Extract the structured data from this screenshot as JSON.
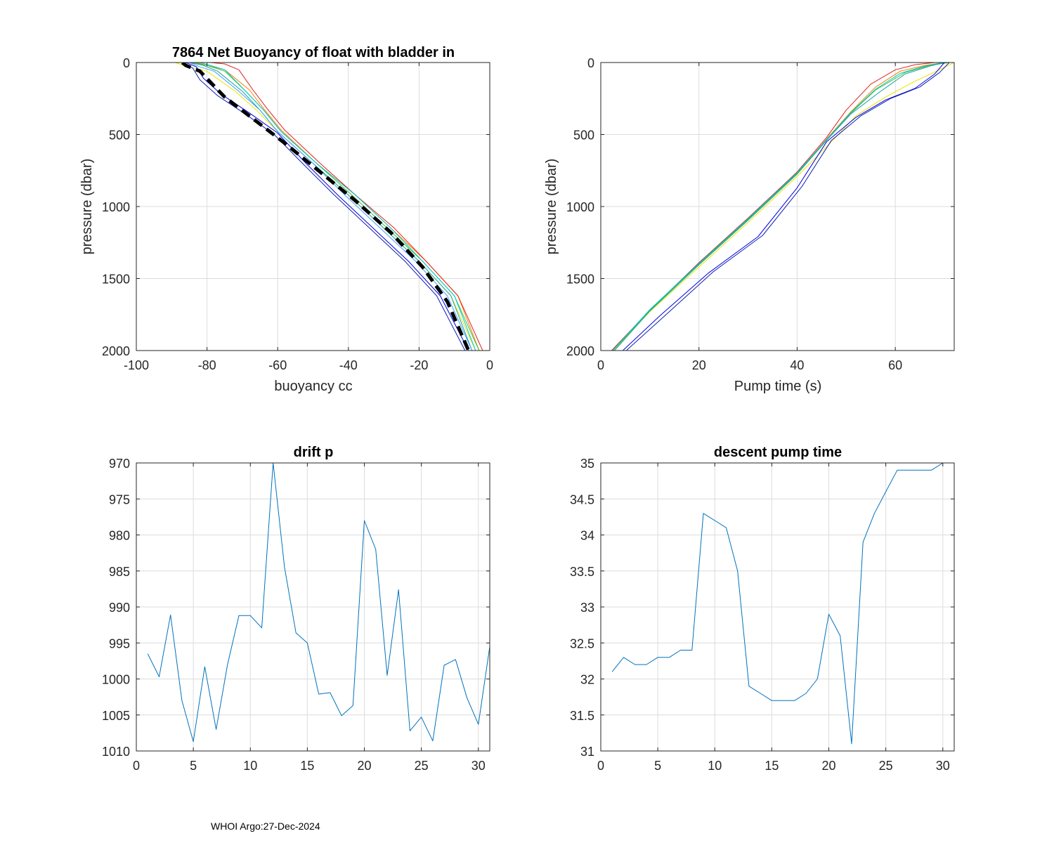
{
  "footer": "WHOI Argo:27-Dec-2024",
  "panels": {
    "buoyancy": {
      "title": "7864 Net Buoyancy of float with bladder in",
      "xlabel": "buoyancy cc",
      "ylabel": "pressure (dbar)"
    },
    "pump": {
      "title": "",
      "xlabel": "Pump time (s)",
      "ylabel": "pressure (dbar)"
    },
    "drift": {
      "title": "drift p",
      "xlabel": "",
      "ylabel": ""
    },
    "descent": {
      "title": "descent pump time",
      "xlabel": "",
      "ylabel": ""
    }
  },
  "chart_data": [
    {
      "id": "buoyancy",
      "type": "line",
      "title": "7864 Net Buoyancy of float with bladder in",
      "xlabel": "buoyancy cc",
      "ylabel": "pressure (dbar)",
      "xlim": [
        -100,
        0
      ],
      "ylim": [
        0,
        2000
      ],
      "y_reversed": true,
      "xticks": [
        -100,
        -80,
        -60,
        -40,
        -20,
        0
      ],
      "yticks": [
        0,
        500,
        1000,
        1500,
        2000
      ],
      "grid": true,
      "series": [
        {
          "name": "profile-yellow",
          "color": "#e6e600",
          "x": [
            -89,
            -86,
            -80,
            -72,
            -66,
            -60,
            -50,
            -40,
            -30,
            -20,
            -11,
            -4
          ],
          "y": [
            0,
            25,
            60,
            200,
            330,
            480,
            700,
            920,
            1150,
            1380,
            1620,
            2000
          ]
        },
        {
          "name": "profile-orange",
          "color": "#ff8000",
          "x": [
            -83,
            -80,
            -75,
            -68,
            -64,
            -59,
            -49,
            -38,
            -28,
            -18,
            -9,
            -3
          ],
          "y": [
            0,
            20,
            50,
            190,
            320,
            470,
            700,
            920,
            1150,
            1380,
            1620,
            2000
          ]
        },
        {
          "name": "profile-red",
          "color": "#e02020",
          "x": [
            -79,
            -75,
            -71,
            -67,
            -63,
            -58,
            -48,
            -38,
            -27,
            -18,
            -9,
            -2
          ],
          "y": [
            0,
            10,
            50,
            190,
            320,
            470,
            700,
            920,
            1150,
            1380,
            1620,
            2000
          ]
        },
        {
          "name": "profile-green",
          "color": "#40c040",
          "x": [
            -84,
            -80,
            -75,
            -69,
            -64,
            -59,
            -49,
            -39,
            -29,
            -19,
            -10,
            -3
          ],
          "y": [
            0,
            20,
            60,
            200,
            330,
            480,
            700,
            920,
            1150,
            1380,
            1620,
            2000
          ]
        },
        {
          "name": "profile-cyan",
          "color": "#00c8c8",
          "x": [
            -82,
            -79,
            -75,
            -69,
            -64,
            -59,
            -49,
            -38,
            -28,
            -19,
            -10,
            -4
          ],
          "y": [
            0,
            20,
            50,
            200,
            330,
            480,
            700,
            920,
            1150,
            1380,
            1620,
            2000
          ]
        },
        {
          "name": "profile-teal",
          "color": "#20a0a0",
          "x": [
            -85,
            -81,
            -77,
            -70,
            -65,
            -60,
            -50,
            -40,
            -30,
            -20,
            -11,
            -5
          ],
          "y": [
            0,
            20,
            60,
            200,
            330,
            480,
            700,
            920,
            1150,
            1380,
            1620,
            2000
          ]
        },
        {
          "name": "profile-lightblue",
          "color": "#40a0ff",
          "x": [
            -85,
            -82,
            -78,
            -71,
            -65,
            -60,
            -50,
            -41,
            -31,
            -21,
            -12,
            -5
          ],
          "y": [
            0,
            30,
            60,
            200,
            330,
            480,
            700,
            920,
            1150,
            1380,
            1620,
            2000
          ]
        },
        {
          "name": "profile-blue",
          "color": "#0000e0",
          "x": [
            -86,
            -83,
            -81,
            -76,
            -68,
            -60,
            -52,
            -43,
            -33,
            -23,
            -14,
            -6
          ],
          "y": [
            0,
            30,
            110,
            220,
            350,
            490,
            700,
            920,
            1150,
            1380,
            1620,
            2000
          ]
        },
        {
          "name": "profile-navy",
          "color": "#1020b0",
          "x": [
            -87,
            -84,
            -82,
            -77,
            -69,
            -61,
            -53,
            -44,
            -34,
            -24,
            -15,
            -7
          ],
          "y": [
            0,
            40,
            120,
            230,
            360,
            500,
            700,
            920,
            1150,
            1380,
            1620,
            2000
          ]
        },
        {
          "name": "model-fit",
          "color": "#000000",
          "style": "dashed",
          "x": [
            -87,
            -86,
            -82,
            -75,
            -67,
            -58,
            -48,
            -38,
            -28,
            -19,
            -12,
            -6
          ],
          "y": [
            0,
            20,
            60,
            240,
            390,
            560,
            760,
            960,
            1180,
            1420,
            1660,
            2000
          ]
        }
      ]
    },
    {
      "id": "pump",
      "type": "line",
      "title": "",
      "xlabel": "Pump time (s)",
      "ylabel": "pressure (dbar)",
      "xlim": [
        0,
        72
      ],
      "ylim": [
        0,
        2000
      ],
      "y_reversed": true,
      "xticks": [
        0,
        20,
        40,
        60
      ],
      "yticks": [
        0,
        500,
        1000,
        1500,
        2000
      ],
      "grid": true,
      "series": [
        {
          "name": "pump-yellow",
          "color": "#e6e600",
          "x": [
            2.5,
            10,
            20,
            30,
            40,
            47,
            52,
            58,
            64,
            69,
            72
          ],
          "y": [
            2000,
            1730,
            1420,
            1110,
            790,
            550,
            370,
            240,
            130,
            50,
            0
          ]
        },
        {
          "name": "pump-orange",
          "color": "#ff8000",
          "x": [
            2.5,
            10,
            20,
            30,
            40,
            46,
            51,
            56,
            61,
            66,
            70
          ],
          "y": [
            2000,
            1720,
            1400,
            1090,
            770,
            530,
            340,
            170,
            60,
            20,
            0
          ]
        },
        {
          "name": "pump-red",
          "color": "#e02020",
          "x": [
            2.2,
            10,
            20,
            30,
            40,
            46,
            50,
            55,
            60,
            64,
            68
          ],
          "y": [
            2000,
            1720,
            1390,
            1080,
            760,
            520,
            330,
            150,
            50,
            15,
            0
          ]
        },
        {
          "name": "pump-green",
          "color": "#40c040",
          "x": [
            2.5,
            10,
            20,
            30,
            40,
            46,
            51,
            56,
            62,
            67,
            71
          ],
          "y": [
            2000,
            1720,
            1400,
            1090,
            770,
            540,
            350,
            190,
            70,
            20,
            0
          ]
        },
        {
          "name": "pump-cyan",
          "color": "#00c8c8",
          "x": [
            2.4,
            10,
            20,
            30,
            40,
            46,
            51,
            56,
            61,
            66,
            70
          ],
          "y": [
            2000,
            1715,
            1395,
            1085,
            765,
            535,
            345,
            185,
            75,
            25,
            0
          ]
        },
        {
          "name": "pump-teal",
          "color": "#20a0a0",
          "x": [
            2.8,
            10,
            20,
            30,
            40,
            46,
            51,
            57,
            62,
            67,
            70
          ],
          "y": [
            2000,
            1725,
            1405,
            1095,
            775,
            540,
            355,
            200,
            80,
            25,
            0
          ]
        },
        {
          "name": "pump-blue",
          "color": "#0000e0",
          "x": [
            4.5,
            12,
            22,
            32,
            40,
            46,
            52,
            58,
            64,
            68,
            70
          ],
          "y": [
            2000,
            1760,
            1460,
            1210,
            870,
            550,
            380,
            260,
            180,
            80,
            0
          ]
        },
        {
          "name": "pump-navy",
          "color": "#1020b0",
          "x": [
            5.2,
            13,
            23,
            33,
            41,
            47,
            53,
            59,
            65,
            69,
            71
          ],
          "y": [
            2000,
            1760,
            1450,
            1200,
            860,
            540,
            370,
            250,
            170,
            70,
            0
          ]
        }
      ]
    },
    {
      "id": "drift",
      "type": "line",
      "title": "drift p",
      "xlabel": "",
      "ylabel": "",
      "xlim": [
        0,
        31
      ],
      "ylim": [
        970,
        1010
      ],
      "y_reversed": true,
      "xticks": [
        0,
        5,
        10,
        15,
        20,
        25,
        30
      ],
      "yticks": [
        970,
        975,
        980,
        985,
        990,
        995,
        1000,
        1005,
        1010
      ],
      "grid": true,
      "color": "#0072bd",
      "x": [
        1,
        2,
        3,
        4,
        5,
        6,
        7,
        8,
        9,
        10,
        11,
        12,
        13,
        14,
        15,
        16,
        17,
        18,
        19,
        20,
        21,
        22,
        23,
        24,
        25,
        26,
        27,
        28,
        29,
        30,
        31
      ],
      "y": [
        996.5,
        999.7,
        991.1,
        1003.0,
        1008.7,
        998.3,
        1007.0,
        998.0,
        991.2,
        991.2,
        992.9,
        970.0,
        984.5,
        993.6,
        995.0,
        1002.1,
        1001.9,
        1005.1,
        1003.7,
        978.0,
        982.0,
        999.5,
        987.6,
        1007.2,
        1005.3,
        1008.6,
        998.1,
        997.3,
        1002.6,
        1006.3,
        995.5
      ]
    },
    {
      "id": "descent",
      "type": "line",
      "title": "descent pump time",
      "xlabel": "",
      "ylabel": "",
      "xlim": [
        0,
        31
      ],
      "ylim": [
        31,
        35
      ],
      "y_reversed": false,
      "xticks": [
        0,
        5,
        10,
        15,
        20,
        25,
        30
      ],
      "yticks": [
        31,
        31.5,
        32,
        32.5,
        33,
        33.5,
        34,
        34.5,
        35
      ],
      "grid": true,
      "color": "#0072bd",
      "x": [
        1,
        2,
        3,
        4,
        5,
        6,
        7,
        8,
        9,
        10,
        11,
        12,
        13,
        14,
        15,
        16,
        17,
        18,
        19,
        20,
        21,
        22,
        23,
        24,
        25,
        26,
        27,
        28,
        29,
        30,
        31
      ],
      "y": [
        32.1,
        32.3,
        32.2,
        32.2,
        32.3,
        32.3,
        32.4,
        32.4,
        34.3,
        34.2,
        34.1,
        33.5,
        31.9,
        31.8,
        31.7,
        31.7,
        31.7,
        31.8,
        32.0,
        32.9,
        32.6,
        31.1,
        33.9,
        34.3,
        34.6,
        34.9,
        34.9,
        34.9,
        34.9,
        35.0,
        35.0
      ]
    }
  ]
}
